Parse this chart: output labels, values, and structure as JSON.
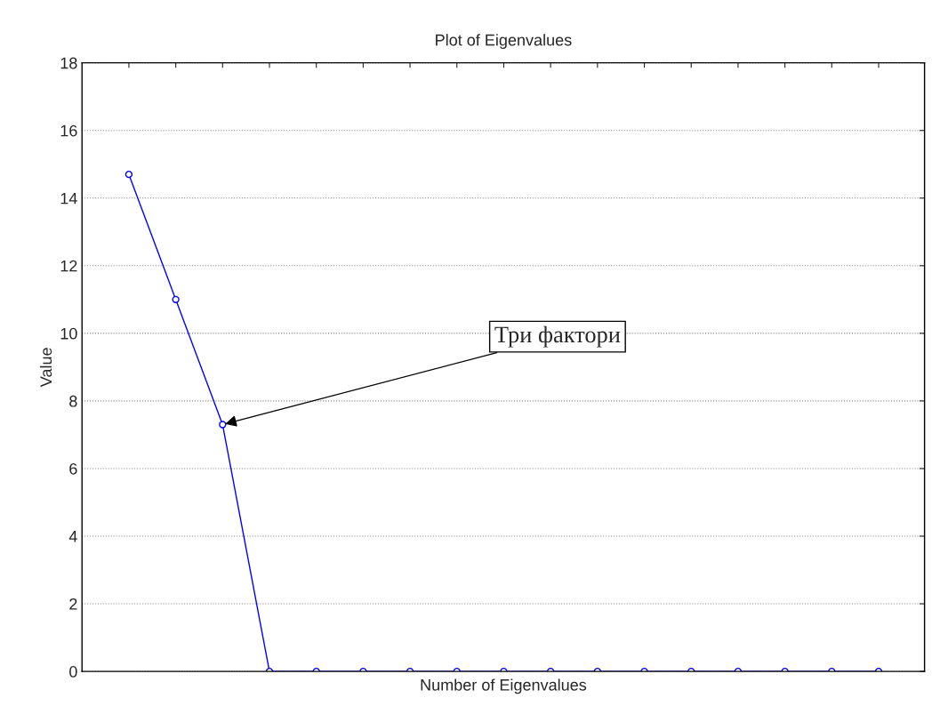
{
  "chart_data": {
    "type": "line",
    "title": "Plot of Eigenvalues",
    "xlabel": "Number of Eigenvalues",
    "ylabel": "Value",
    "categories": [
      null,
      null,
      null,
      null,
      null,
      null,
      null,
      null,
      null,
      null,
      null,
      null,
      null,
      null,
      null,
      null,
      null
    ],
    "series": [
      {
        "color": "#0000ff",
        "values": [
          14.7,
          11.0,
          7.3,
          0,
          0,
          0,
          0,
          0,
          0,
          0,
          0,
          0,
          0,
          0,
          0,
          0,
          0
        ]
      }
    ],
    "ylim": [
      0,
      18
    ],
    "yticks": [
      0,
      2,
      4,
      6,
      8,
      10,
      12,
      14,
      16,
      18
    ],
    "grid": "y",
    "marker": "circle",
    "line_style": "solid",
    "annotations": [
      "Три фактори"
    ]
  }
}
